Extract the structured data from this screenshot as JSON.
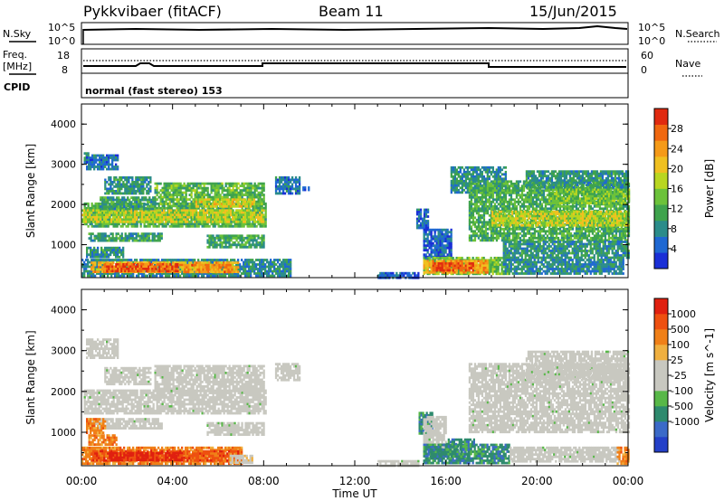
{
  "header": {
    "station": "Pykkvibaer (fitACF)",
    "beam": "Beam 11",
    "date": "15/Jun/2015"
  },
  "nsky_panel": {
    "left_label": "N.Sky",
    "right_label": "N.Search",
    "left_ticks": [
      "10^5",
      "10^0"
    ],
    "right_ticks": [
      "10^5",
      "10^0"
    ]
  },
  "freq_panel": {
    "left_label_1": "Freq.",
    "left_label_2": "[MHz]",
    "right_label": "Nave",
    "left_ticks": [
      "18",
      "8"
    ],
    "right_ticks": [
      "60",
      "0"
    ]
  },
  "cpid_panel": {
    "label": "CPID",
    "text": "normal (fast stereo) 153"
  },
  "x_axis": {
    "title": "Time UT",
    "ticks": [
      "00:00",
      "04:00",
      "08:00",
      "12:00",
      "16:00",
      "20:00",
      "00:00"
    ]
  },
  "chart_data": [
    {
      "type": "heatmap",
      "name": "power",
      "ylabel": "Slant Range [km]",
      "ylim": [
        180,
        4500
      ],
      "y_ticks": [
        1000,
        2000,
        3000,
        4000
      ],
      "x_range_hours": [
        0,
        24
      ],
      "colorbar": {
        "label": "Power [dB]",
        "ticks": [
          4,
          8,
          12,
          16,
          20,
          24,
          28
        ],
        "range": [
          0,
          32
        ],
        "colors": [
          "#1a2fd6",
          "#1f68d2",
          "#2b8c8a",
          "#3fa34d",
          "#6cc23a",
          "#b9d620",
          "#f0c020",
          "#f59a18",
          "#f06810",
          "#e02a10"
        ]
      },
      "regions": [
        {
          "t": [
            0.1,
            0.3
          ],
          "r": [
            3050,
            3300
          ],
          "v": 8
        },
        {
          "t": [
            0.2,
            1.6
          ],
          "r": [
            2900,
            3250
          ],
          "v": 6
        },
        {
          "t": [
            1.0,
            3.0
          ],
          "r": [
            2300,
            2700
          ],
          "v": 9
        },
        {
          "t": [
            0.1,
            8.1
          ],
          "r": [
            1450,
            2050
          ],
          "v": 12
        },
        {
          "t": [
            0.0,
            8.0
          ],
          "r": [
            1580,
            1880
          ],
          "v": 18
        },
        {
          "t": [
            3.2,
            8.0
          ],
          "r": [
            2000,
            2550
          ],
          "v": 13
        },
        {
          "t": [
            0.8,
            3.2
          ],
          "r": [
            1900,
            2200
          ],
          "v": 10
        },
        {
          "t": [
            5.0,
            7.6
          ],
          "r": [
            1950,
            2150
          ],
          "v": 19
        },
        {
          "t": [
            0.3,
            3.5
          ],
          "r": [
            1100,
            1300
          ],
          "v": 10
        },
        {
          "t": [
            5.5,
            8.0
          ],
          "r": [
            950,
            1250
          ],
          "v": 11
        },
        {
          "t": [
            0.2,
            1.8
          ],
          "r": [
            700,
            950
          ],
          "v": 9
        },
        {
          "t": [
            0.0,
            9.2
          ],
          "r": [
            250,
            650
          ],
          "v": 8
        },
        {
          "t": [
            0.4,
            6.9
          ],
          "r": [
            300,
            580
          ],
          "v": 22
        },
        {
          "t": [
            1.0,
            4.2
          ],
          "r": [
            330,
            540
          ],
          "v": 28
        },
        {
          "t": [
            4.5,
            6.6
          ],
          "r": [
            330,
            520
          ],
          "v": 25
        },
        {
          "t": [
            8.5,
            9.6
          ],
          "r": [
            2300,
            2700
          ],
          "v": 6
        },
        {
          "t": [
            9.7,
            10.0
          ],
          "r": [
            2350,
            2450
          ],
          "v": 4
        },
        {
          "t": [
            13.0,
            14.8
          ],
          "r": [
            200,
            320
          ],
          "v": 4
        },
        {
          "t": [
            14.7,
            15.2
          ],
          "r": [
            1400,
            1900
          ],
          "v": 6
        },
        {
          "t": [
            15.0,
            16.2
          ],
          "r": [
            600,
            1400
          ],
          "v": 5
        },
        {
          "t": [
            15.0,
            18.8
          ],
          "r": [
            250,
            700
          ],
          "v": 14
        },
        {
          "t": [
            15.0,
            17.8
          ],
          "r": [
            300,
            620
          ],
          "v": 24
        },
        {
          "t": [
            15.4,
            17.2
          ],
          "r": [
            340,
            560
          ],
          "v": 29
        },
        {
          "t": [
            16.2,
            18.6
          ],
          "r": [
            2300,
            2950
          ],
          "v": 8
        },
        {
          "t": [
            17.0,
            24.0
          ],
          "r": [
            1100,
            2600
          ],
          "v": 12
        },
        {
          "t": [
            18.0,
            24.0
          ],
          "r": [
            1500,
            1850
          ],
          "v": 18
        },
        {
          "t": [
            20.5,
            24.0
          ],
          "r": [
            2050,
            2400
          ],
          "v": 14
        },
        {
          "t": [
            19.5,
            24.0
          ],
          "r": [
            2450,
            2850
          ],
          "v": 9
        },
        {
          "t": [
            18.5,
            24.0
          ],
          "r": [
            700,
            1100
          ],
          "v": 9
        },
        {
          "t": [
            18.5,
            23.8
          ],
          "r": [
            300,
            650
          ],
          "v": 8
        }
      ]
    },
    {
      "type": "heatmap",
      "name": "velocity",
      "ylabel": "Slant Range [km]",
      "ylim": [
        180,
        4500
      ],
      "y_ticks": [
        1000,
        2000,
        3000,
        4000
      ],
      "x_range_hours": [
        0,
        24
      ],
      "colorbar": {
        "label": "Velocity [m s^-1]",
        "ticks": [
          "1000",
          "500",
          "100",
          "25",
          "-25",
          "-100",
          "-500",
          "-1000"
        ],
        "colors": [
          "#2440c8",
          "#3b6ac8",
          "#2e8a6e",
          "#58b848",
          "#c8c8c0",
          "#c8c8c0",
          "#f0b040",
          "#f08018",
          "#ee5010",
          "#e02010"
        ]
      },
      "regions": [
        {
          "t": [
            0.1,
            8.1
          ],
          "r": [
            1450,
            2050
          ],
          "v": 4
        },
        {
          "t": [
            3.2,
            8.0
          ],
          "r": [
            2000,
            2650
          ],
          "v": 4
        },
        {
          "t": [
            0.2,
            1.6
          ],
          "r": [
            2850,
            3300
          ],
          "v": 4
        },
        {
          "t": [
            1.0,
            3.0
          ],
          "r": [
            2200,
            2600
          ],
          "v": 4
        },
        {
          "t": [
            0.3,
            3.5
          ],
          "r": [
            1100,
            1350
          ],
          "v": 4
        },
        {
          "t": [
            5.5,
            8.0
          ],
          "r": [
            950,
            1250
          ],
          "v": 4
        },
        {
          "t": [
            0.2,
            1.0
          ],
          "r": [
            1000,
            1350
          ],
          "v": 7
        },
        {
          "t": [
            0.3,
            1.5
          ],
          "r": [
            700,
            950
          ],
          "v": 7
        },
        {
          "t": [
            0.0,
            7.0
          ],
          "r": [
            250,
            650
          ],
          "v": 7
        },
        {
          "t": [
            0.4,
            6.9
          ],
          "r": [
            330,
            560
          ],
          "v": 8
        },
        {
          "t": [
            1.2,
            4.5
          ],
          "r": [
            350,
            520
          ],
          "v": 9
        },
        {
          "t": [
            6.5,
            7.5
          ],
          "r": [
            250,
            450
          ],
          "v": 5
        },
        {
          "t": [
            8.5,
            9.6
          ],
          "r": [
            2300,
            2700
          ],
          "v": 4
        },
        {
          "t": [
            13.0,
            14.8
          ],
          "r": [
            200,
            320
          ],
          "v": 4
        },
        {
          "t": [
            14.8,
            15.4
          ],
          "r": [
            1000,
            1500
          ],
          "v": 2
        },
        {
          "t": [
            15.0,
            16.0
          ],
          "r": [
            600,
            1400
          ],
          "v": 4
        },
        {
          "t": [
            15.0,
            18.8
          ],
          "r": [
            250,
            720
          ],
          "v": 2
        },
        {
          "t": [
            15.2,
            17.0
          ],
          "r": [
            400,
            600
          ],
          "v": 2
        },
        {
          "t": [
            16.0,
            17.2
          ],
          "r": [
            650,
            850
          ],
          "v": 2
        },
        {
          "t": [
            17.0,
            24.0
          ],
          "r": [
            1000,
            2700
          ],
          "v": 4
        },
        {
          "t": [
            19.5,
            24.0
          ],
          "r": [
            2300,
            3000
          ],
          "v": 4
        },
        {
          "t": [
            18.8,
            23.6
          ],
          "r": [
            300,
            650
          ],
          "v": 4
        },
        {
          "t": [
            23.5,
            24.0
          ],
          "r": [
            250,
            650
          ],
          "v": 7
        }
      ]
    }
  ]
}
